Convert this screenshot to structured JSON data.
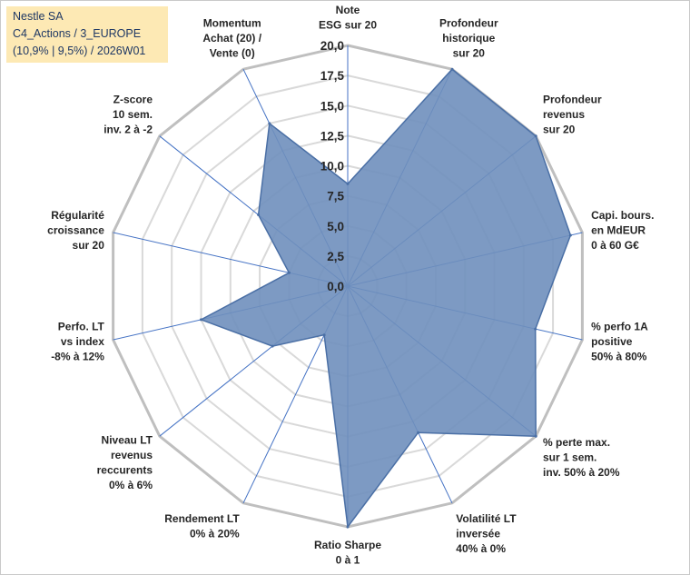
{
  "info": {
    "company": "Nestle SA",
    "category": "C4_Actions / 3_EUROPE",
    "detail": "(10,9% | 9,5%) / 2026W01"
  },
  "colors": {
    "fill": "#6f8fbd",
    "stroke": "#4a6fa5",
    "grid": "#d9d9d9",
    "outer_grid": "#bfbfbf",
    "spoke": "#4472c4",
    "info_bg": "#fde9b4"
  },
  "chart_data": {
    "type": "radar",
    "title": "",
    "range": [
      0,
      20
    ],
    "tick_values": [
      0,
      2.5,
      5,
      7.5,
      10,
      12.5,
      15,
      17.5,
      20
    ],
    "tick_labels": [
      "0,0",
      "2,5",
      "5,0",
      "7,5",
      "10,0",
      "12,5",
      "15,0",
      "17,5",
      "20,0"
    ],
    "axes": [
      {
        "label": [
          "Note",
          "ESG sur 20"
        ],
        "value": 8.5
      },
      {
        "label": [
          "Profondeur",
          "historique",
          "sur 20"
        ],
        "value": 20
      },
      {
        "label": [
          "Profondeur",
          "revenus",
          "sur 20"
        ],
        "value": 20
      },
      {
        "label": [
          "Capi. bours.",
          "en MdEUR",
          "0 à 60 G€"
        ],
        "value": 19
      },
      {
        "label": [
          "% perfo 1A",
          "positive",
          "50% à 80%"
        ],
        "value": 16
      },
      {
        "label": [
          "% perte max.",
          "sur 1 sem.",
          "inv. 50% à 20%"
        ],
        "value": 20
      },
      {
        "label": [
          "Volatilité LT",
          "inversée",
          "40% à 0%"
        ],
        "value": 13.5
      },
      {
        "label": [
          "Ratio Sharpe",
          "0 à 1"
        ],
        "value": 20
      },
      {
        "label": [
          "Rendement LT",
          "0% à 20%"
        ],
        "value": 4.5
      },
      {
        "label": [
          "Niveau LT",
          "revenus",
          "reccurents",
          "0% à 6%"
        ],
        "value": 8
      },
      {
        "label": [
          "Perfo. LT",
          "vs index",
          "-8% à 12%"
        ],
        "value": 12.5
      },
      {
        "label": [
          "Régularité",
          "croissance",
          "sur 20"
        ],
        "value": 5
      },
      {
        "label": [
          "Z-score",
          "10 sem.",
          "inv. 2 à -2"
        ],
        "value": 9.5
      },
      {
        "label": [
          "Momentum",
          "Achat (20) /",
          "Vente (0)"
        ],
        "value": 15
      }
    ]
  }
}
